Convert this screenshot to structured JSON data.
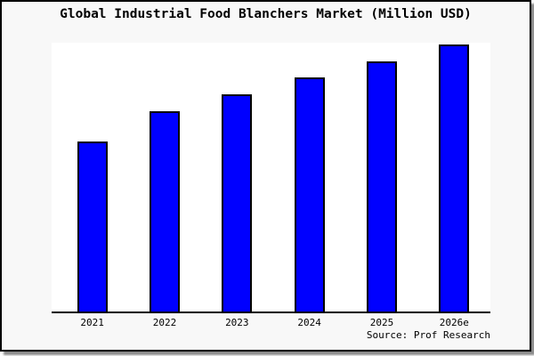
{
  "chart_data": {
    "type": "bar",
    "title": "Global Industrial Food Blanchers Market (Million USD)",
    "source": "Source: Prof Research",
    "categories": [
      "2021",
      "2022",
      "2023",
      "2024",
      "2025",
      "2026e"
    ],
    "values_relative": [
      100,
      117.8,
      127.8,
      137.6,
      146.9,
      157.0
    ],
    "bar_heights_pct_of_plot": [
      63.2,
      74.5,
      80.8,
      87.1,
      93.0,
      99.3
    ],
    "unit_note": "no y-axis scale shown; values are relative bar heights with 2021 = 100",
    "xlabel": "",
    "ylabel": "",
    "grid": false,
    "legend": false,
    "colors": {
      "bar_fill": "#0000ff",
      "bar_border": "#000000",
      "plot_background": "#ffffff",
      "frame_background": "#f8f8f8",
      "frame_border": "#000000",
      "axis_line": "#000000",
      "text": "#000000",
      "shadow": "#8c8c8c"
    }
  }
}
